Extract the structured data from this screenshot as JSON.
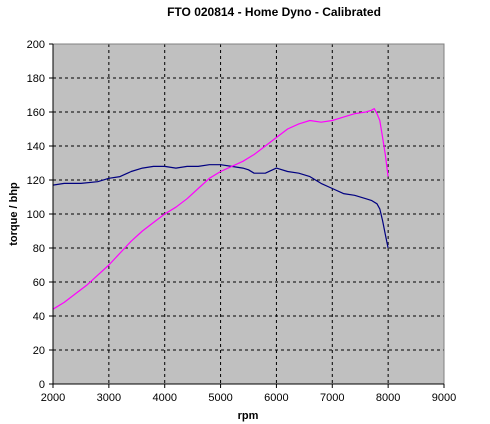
{
  "chart_data": {
    "type": "line",
    "title": "FTO 020814 - Home Dyno - Calibrated",
    "xlabel": "rpm",
    "ylabel": "torque / bhp",
    "xlim": [
      2000,
      9000
    ],
    "ylim": [
      0,
      200
    ],
    "xticks": [
      2000,
      3000,
      4000,
      5000,
      6000,
      7000,
      8000,
      9000
    ],
    "yticks": [
      0,
      20,
      40,
      60,
      80,
      100,
      120,
      140,
      160,
      180,
      200
    ],
    "grid": true,
    "plot_background": "#c0c0c0",
    "legend": "none",
    "series": [
      {
        "color": "#000080",
        "x": [
          2000,
          2200,
          2500,
          2800,
          3000,
          3200,
          3400,
          3600,
          3800,
          4000,
          4200,
          4400,
          4600,
          4800,
          5000,
          5200,
          5400,
          5500,
          5600,
          5800,
          6000,
          6200,
          6400,
          6600,
          6800,
          7000,
          7200,
          7400,
          7600,
          7700,
          7800,
          7850,
          7900,
          7950,
          8000
        ],
        "y": [
          117,
          118,
          118,
          119,
          121,
          122,
          125,
          127,
          128,
          128,
          127,
          128,
          128,
          129,
          129,
          128,
          127,
          126,
          124,
          124,
          127,
          125,
          124,
          122,
          118,
          115,
          112,
          111,
          109,
          108,
          106,
          103,
          96,
          88,
          80
        ]
      },
      {
        "color": "#ff00ff",
        "x": [
          2000,
          2200,
          2400,
          2600,
          2800,
          3000,
          3200,
          3400,
          3600,
          3800,
          4000,
          4200,
          4400,
          4600,
          4800,
          5000,
          5200,
          5400,
          5600,
          5800,
          6000,
          6200,
          6400,
          6600,
          6800,
          7000,
          7200,
          7400,
          7600,
          7700,
          7750,
          7800,
          7850,
          7900,
          7950,
          8000
        ],
        "y": [
          44,
          48,
          53,
          58,
          64,
          70,
          77,
          84,
          90,
          95,
          100,
          104,
          109,
          115,
          121,
          125,
          128,
          131,
          135,
          140,
          145,
          150,
          153,
          155,
          154,
          155,
          157,
          159,
          160,
          161,
          162,
          159,
          155,
          145,
          135,
          122
        ]
      }
    ]
  }
}
